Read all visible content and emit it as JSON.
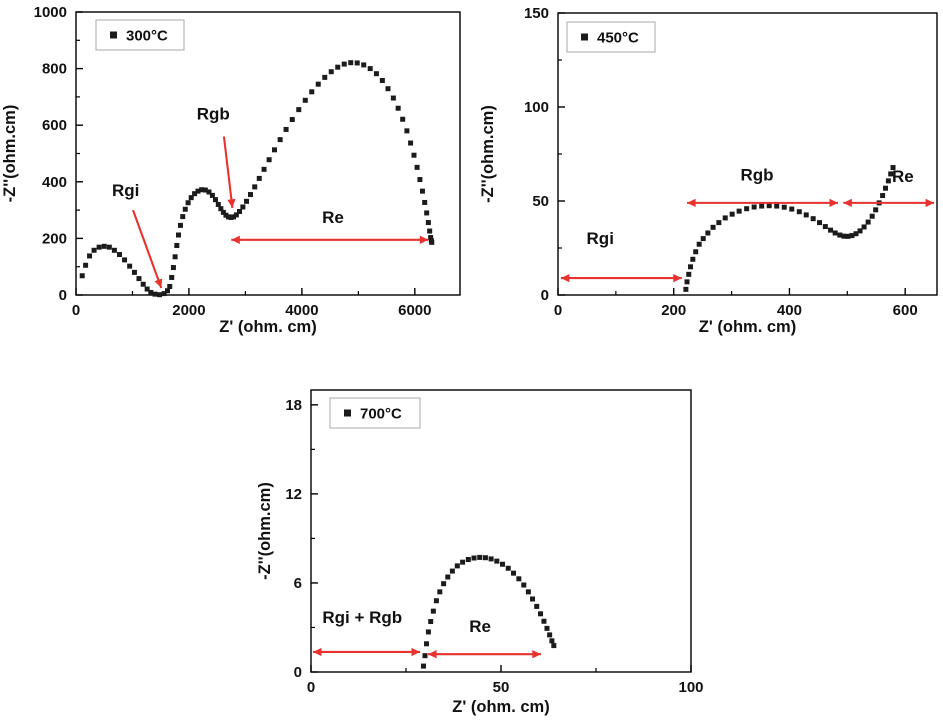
{
  "figure": {
    "background": "#ffffff",
    "marker_color": "#1b1b1b",
    "annotation_color": "#e8322d",
    "frame_color": "#000000"
  },
  "chart_data": [
    {
      "type": "scatter",
      "legend": "300°C",
      "xlabel": "Z' (ohm. cm)",
      "ylabel": "-Z''(ohm.cm)",
      "xlim": [
        0,
        6800
      ],
      "ylim": [
        0,
        1000
      ],
      "xticks": [
        0,
        2000,
        4000,
        6000
      ],
      "yticks": [
        0,
        200,
        400,
        600,
        800,
        1000
      ],
      "marker": "square",
      "points": [
        [
          110,
          68
        ],
        [
          170,
          105
        ],
        [
          240,
          138
        ],
        [
          320,
          158
        ],
        [
          410,
          169
        ],
        [
          500,
          172
        ],
        [
          590,
          169
        ],
        [
          680,
          158
        ],
        [
          770,
          143
        ],
        [
          860,
          124
        ],
        [
          950,
          102
        ],
        [
          1035,
          80
        ],
        [
          1115,
          58
        ],
        [
          1190,
          38
        ],
        [
          1260,
          21
        ],
        [
          1325,
          9
        ],
        [
          1400,
          3
        ],
        [
          1480,
          1
        ],
        [
          1560,
          5
        ],
        [
          1620,
          15
        ],
        [
          1660,
          30
        ],
        [
          1695,
          62
        ],
        [
          1725,
          97
        ],
        [
          1755,
          135
        ],
        [
          1785,
          175
        ],
        [
          1815,
          212
        ],
        [
          1850,
          246
        ],
        [
          1890,
          277
        ],
        [
          1935,
          303
        ],
        [
          1985,
          326
        ],
        [
          2040,
          344
        ],
        [
          2100,
          358
        ],
        [
          2160,
          367
        ],
        [
          2225,
          372
        ],
        [
          2290,
          371
        ],
        [
          2355,
          364
        ],
        [
          2415,
          352
        ],
        [
          2470,
          337
        ],
        [
          2520,
          320
        ],
        [
          2565,
          305
        ],
        [
          2610,
          292
        ],
        [
          2655,
          282
        ],
        [
          2700,
          276
        ],
        [
          2745,
          274
        ],
        [
          2790,
          276
        ],
        [
          2840,
          283
        ],
        [
          2895,
          295
        ],
        [
          2955,
          311
        ],
        [
          3020,
          331
        ],
        [
          3090,
          355
        ],
        [
          3165,
          382
        ],
        [
          3245,
          412
        ],
        [
          3330,
          444
        ],
        [
          3420,
          478
        ],
        [
          3515,
          513
        ],
        [
          3615,
          549
        ],
        [
          3720,
          585
        ],
        [
          3830,
          620
        ],
        [
          3945,
          655
        ],
        [
          4060,
          688
        ],
        [
          4175,
          718
        ],
        [
          4290,
          745
        ],
        [
          4405,
          769
        ],
        [
          4520,
          789
        ],
        [
          4635,
          805
        ],
        [
          4750,
          816
        ],
        [
          4865,
          821
        ],
        [
          4980,
          820
        ],
        [
          5095,
          813
        ],
        [
          5210,
          800
        ],
        [
          5320,
          782
        ],
        [
          5425,
          758
        ],
        [
          5525,
          729
        ],
        [
          5620,
          696
        ],
        [
          5705,
          660
        ],
        [
          5785,
          621
        ],
        [
          5860,
          580
        ],
        [
          5925,
          537
        ],
        [
          5985,
          494
        ],
        [
          6040,
          451
        ],
        [
          6090,
          408
        ],
        [
          6135,
          367
        ],
        [
          6175,
          327
        ],
        [
          6210,
          290
        ],
        [
          6240,
          256
        ],
        [
          6263,
          226
        ],
        [
          6280,
          203
        ],
        [
          6292,
          192
        ],
        [
          6300,
          186
        ]
      ],
      "annotations": [
        {
          "kind": "pointer",
          "label": "Rgi",
          "lx": 880,
          "ly": 350,
          "ax": 1010,
          "ay": 300,
          "tx": 1510,
          "ty": 25
        },
        {
          "kind": "pointer",
          "label": "Rgb",
          "lx": 2430,
          "ly": 620,
          "ax": 2620,
          "ay": 560,
          "tx": 2770,
          "ty": 308
        },
        {
          "kind": "span",
          "label": "Re",
          "x1": 2750,
          "x2": 6240,
          "y": 195,
          "lx": 4550,
          "ly": 255
        }
      ]
    },
    {
      "type": "scatter",
      "legend": "450°C",
      "xlabel": "Z' (ohm. cm)",
      "ylabel": "-Z''(ohm.cm)",
      "xlim": [
        0,
        655
      ],
      "ylim": [
        0,
        150
      ],
      "xticks": [
        0,
        200,
        400,
        600
      ],
      "yticks": [
        0,
        50,
        100,
        150
      ],
      "marker": "square",
      "points": [
        [
          221,
          3
        ],
        [
          223,
          7
        ],
        [
          226,
          11
        ],
        [
          229,
          15
        ],
        [
          233,
          19
        ],
        [
          238,
          23
        ],
        [
          244,
          27
        ],
        [
          251,
          30
        ],
        [
          259,
          33
        ],
        [
          268,
          36
        ],
        [
          278,
          38.5
        ],
        [
          289,
          41
        ],
        [
          301,
          43
        ],
        [
          313,
          44.6
        ],
        [
          326,
          45.9
        ],
        [
          339,
          46.8
        ],
        [
          352,
          47.3
        ],
        [
          365,
          47.5
        ],
        [
          378,
          47.3
        ],
        [
          391,
          46.7
        ],
        [
          404,
          45.7
        ],
        [
          417,
          44.3
        ],
        [
          429,
          42.6
        ],
        [
          441,
          40.6
        ],
        [
          452,
          38.5
        ],
        [
          462,
          36.4
        ],
        [
          471,
          34.5
        ],
        [
          479,
          33
        ],
        [
          487,
          31.9
        ],
        [
          494,
          31.3
        ],
        [
          501,
          31.2
        ],
        [
          508,
          31.6
        ],
        [
          515,
          32.6
        ],
        [
          522,
          34.1
        ],
        [
          529,
          36.2
        ],
        [
          536,
          38.8
        ],
        [
          543,
          41.9
        ],
        [
          549,
          45.3
        ],
        [
          555,
          49
        ],
        [
          561,
          52.9
        ],
        [
          566,
          56.8
        ],
        [
          571,
          60.7
        ],
        [
          575,
          64.4
        ],
        [
          579,
          67.8
        ]
      ],
      "annotations": [
        {
          "kind": "span",
          "label": "Rgi",
          "x1": 5,
          "x2": 214,
          "y": 9,
          "lx": 73,
          "ly": 27
        },
        {
          "kind": "span",
          "label": "Rgb",
          "x1": 223,
          "x2": 484,
          "y": 49,
          "lx": 344,
          "ly": 61
        },
        {
          "kind": "span",
          "label": "Re",
          "x1": 493,
          "x2": 650,
          "y": 49,
          "lx": 596,
          "ly": 60
        }
      ]
    },
    {
      "type": "scatter",
      "legend": "700°C",
      "xlabel": "Z' (ohm. cm)",
      "ylabel": "-Z''(ohm.cm)",
      "xlim": [
        0,
        100
      ],
      "ylim": [
        0,
        19
      ],
      "xticks": [
        0,
        50,
        100
      ],
      "yticks": [
        0,
        6,
        12,
        18
      ],
      "marker": "square",
      "points": [
        [
          29.6,
          0.4
        ],
        [
          30.0,
          1.1
        ],
        [
          30.4,
          1.9
        ],
        [
          30.9,
          2.7
        ],
        [
          31.5,
          3.4
        ],
        [
          32.2,
          4.1
        ],
        [
          33.0,
          4.8
        ],
        [
          33.9,
          5.4
        ],
        [
          34.9,
          5.95
        ],
        [
          36.0,
          6.4
        ],
        [
          37.2,
          6.8
        ],
        [
          38.5,
          7.15
        ],
        [
          39.9,
          7.4
        ],
        [
          41.4,
          7.58
        ],
        [
          42.9,
          7.68
        ],
        [
          44.4,
          7.72
        ],
        [
          45.9,
          7.7
        ],
        [
          47.4,
          7.62
        ],
        [
          48.9,
          7.47
        ],
        [
          50.4,
          7.26
        ],
        [
          51.9,
          6.99
        ],
        [
          53.3,
          6.66
        ],
        [
          54.7,
          6.28
        ],
        [
          56.0,
          5.86
        ],
        [
          57.2,
          5.4
        ],
        [
          58.3,
          4.92
        ],
        [
          59.4,
          4.42
        ],
        [
          60.4,
          3.92
        ],
        [
          61.3,
          3.42
        ],
        [
          62.1,
          2.94
        ],
        [
          62.8,
          2.5
        ],
        [
          63.4,
          2.1
        ],
        [
          63.9,
          1.78
        ]
      ],
      "annotations": [
        {
          "kind": "span",
          "label": "Rgi + Rgb",
          "x1": 0.5,
          "x2": 28.7,
          "y": 1.35,
          "lx": 13.5,
          "ly": 3.3
        },
        {
          "kind": "span",
          "label": "Re",
          "x1": 30.8,
          "x2": 60.5,
          "y": 1.2,
          "lx": 44.5,
          "ly": 2.7
        }
      ]
    }
  ]
}
